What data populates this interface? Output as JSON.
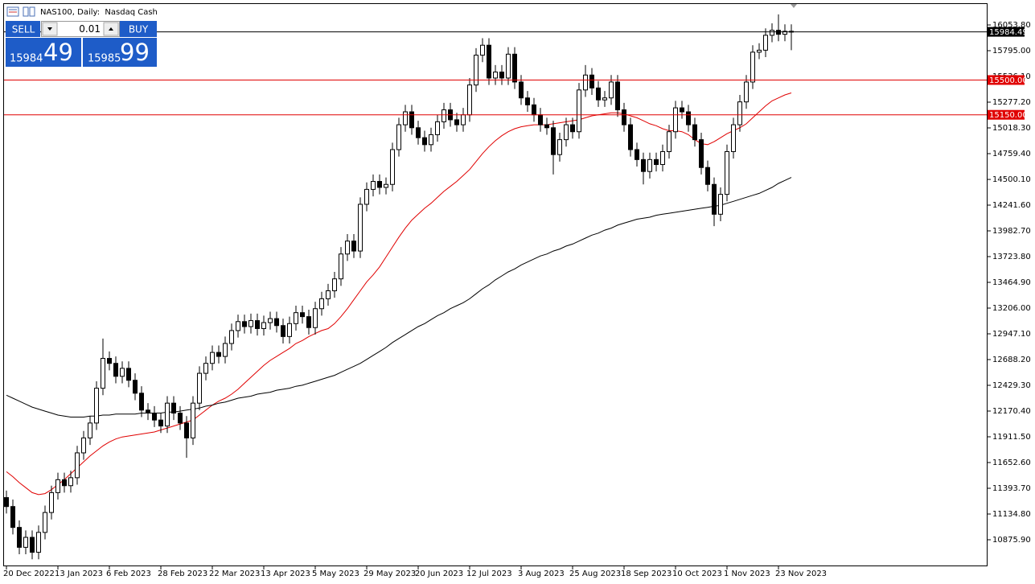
{
  "chart_data": {
    "type": "candlestick",
    "title": "NAS100, Daily:  Nasdaq Cash",
    "categories": [
      "20 Dec 2022",
      null,
      null,
      null,
      null,
      null,
      null,
      null,
      "13 Jan 2023",
      null,
      null,
      null,
      null,
      null,
      null,
      null,
      "6 Feb 2023",
      null,
      null,
      null,
      null,
      null,
      null,
      null,
      "28 Feb 2023",
      null,
      null,
      null,
      null,
      null,
      null,
      null,
      "22 Mar 2023",
      null,
      null,
      null,
      null,
      null,
      null,
      null,
      "13 Apr 2023",
      null,
      null,
      null,
      null,
      null,
      null,
      null,
      "5 May 2023",
      null,
      null,
      null,
      null,
      null,
      null,
      null,
      "29 May 2023",
      null,
      null,
      null,
      null,
      null,
      null,
      null,
      "20 Jun 2023",
      null,
      null,
      null,
      null,
      null,
      null,
      null,
      "12 Jul 2023",
      null,
      null,
      null,
      null,
      null,
      null,
      null,
      "3 Aug 2023",
      null,
      null,
      null,
      null,
      null,
      null,
      null,
      "25 Aug 2023",
      null,
      null,
      null,
      null,
      null,
      null,
      null,
      "18 Sep 2023",
      null,
      null,
      null,
      null,
      null,
      null,
      null,
      "10 Oct 2023",
      null,
      null,
      null,
      null,
      null,
      null,
      null,
      "1 Nov 2023",
      null,
      null,
      null,
      null,
      null,
      null,
      null,
      "23 Nov 2023",
      null,
      null
    ],
    "open": [
      11300,
      11210,
      11000,
      10800,
      10900,
      10750,
      10950,
      11150,
      11350,
      11480,
      11420,
      11500,
      11750,
      11900,
      12050,
      12400,
      12700,
      12650,
      12520,
      12600,
      12480,
      12350,
      12180,
      12150,
      12080,
      12020,
      12250,
      12150,
      12050,
      11900,
      12250,
      12550,
      12650,
      12760,
      12720,
      12850,
      12980,
      13070,
      13020,
      13080,
      13000,
      13060,
      13100,
      13030,
      12920,
      13050,
      13160,
      13120,
      13010,
      13200,
      13300,
      13380,
      13500,
      13750,
      13880,
      13780,
      14250,
      14400,
      14480,
      14420,
      14450,
      14800,
      15050,
      15180,
      15020,
      14920,
      14850,
      14950,
      15080,
      15200,
      15100,
      15050,
      15150,
      15450,
      15750,
      15850,
      15520,
      15580,
      15520,
      15760,
      15480,
      15320,
      15250,
      15150,
      15050,
      15020,
      14750,
      14900,
      15050,
      14980,
      15400,
      15550,
      15420,
      15300,
      15320,
      15480,
      15200,
      15050,
      14800,
      14700,
      14580,
      14700,
      14650,
      14780,
      14980,
      15220,
      15180,
      15050,
      14900,
      14620,
      14450,
      14150,
      14350,
      14780,
      15050,
      15280,
      15480,
      15780,
      15800,
      15950,
      16000,
      15960,
      15990
    ],
    "high": [
      11370,
      11280,
      11070,
      10970,
      10970,
      11020,
      11220,
      11420,
      11550,
      11550,
      11570,
      11820,
      11970,
      12120,
      12470,
      12900,
      12770,
      12720,
      12670,
      12670,
      12550,
      12420,
      12250,
      12220,
      12150,
      12320,
      12320,
      12220,
      12120,
      12320,
      12620,
      12720,
      12830,
      12830,
      12920,
      13050,
      13140,
      13140,
      13150,
      13150,
      13130,
      13170,
      13170,
      13100,
      13120,
      13230,
      13230,
      13190,
      13270,
      13370,
      13450,
      13570,
      13820,
      13950,
      13950,
      14320,
      14470,
      14550,
      14550,
      14520,
      14870,
      15120,
      15250,
      15250,
      15090,
      14990,
      15020,
      15150,
      15270,
      15270,
      15170,
      15220,
      15520,
      15820,
      15920,
      15920,
      15650,
      15650,
      15830,
      15830,
      15550,
      15390,
      15320,
      15220,
      15120,
      15090,
      14970,
      15120,
      15120,
      15470,
      15650,
      15620,
      15490,
      15390,
      15550,
      15550,
      15270,
      15120,
      14870,
      14770,
      14770,
      14770,
      14850,
      15050,
      15290,
      15290,
      15250,
      15120,
      14970,
      14690,
      14520,
      14420,
      14850,
      15120,
      15350,
      15550,
      15850,
      15870,
      16020,
      16070,
      16160,
      16060,
      16060
    ],
    "low": [
      11140,
      10930,
      10730,
      10730,
      10680,
      10680,
      10880,
      11080,
      11280,
      11350,
      11350,
      11430,
      11680,
      11830,
      11980,
      12330,
      12580,
      12450,
      12450,
      12410,
      12280,
      12110,
      12080,
      12010,
      11950,
      11950,
      12080,
      11980,
      11700,
      11830,
      12180,
      12480,
      12580,
      12650,
      12650,
      12780,
      12910,
      12950,
      12950,
      12930,
      12930,
      12990,
      12960,
      12850,
      12850,
      12980,
      13050,
      12940,
      12940,
      13130,
      13230,
      13310,
      13430,
      13680,
      13710,
      13710,
      14180,
      14330,
      14350,
      14350,
      14380,
      14730,
      14980,
      14950,
      14850,
      14780,
      14780,
      14880,
      15010,
      15030,
      14980,
      14980,
      15080,
      15380,
      15680,
      15450,
      15450,
      15450,
      15450,
      15410,
      15250,
      15180,
      15080,
      14980,
      14950,
      14550,
      14680,
      14830,
      14910,
      14910,
      15330,
      15350,
      15230,
      15230,
      15250,
      15130,
      14980,
      14730,
      14630,
      14450,
      14510,
      14580,
      14580,
      14710,
      14910,
      15110,
      14980,
      14830,
      14550,
      14380,
      14030,
      14080,
      14280,
      14710,
      14980,
      15210,
      15410,
      15710,
      15730,
      15880,
      15890,
      15890,
      15800
    ],
    "close": [
      11210,
      11000,
      10800,
      10900,
      10750,
      10950,
      11150,
      11350,
      11480,
      11420,
      11500,
      11750,
      11900,
      12050,
      12400,
      12700,
      12650,
      12520,
      12600,
      12480,
      12350,
      12180,
      12150,
      12080,
      12020,
      12250,
      12150,
      12050,
      11900,
      12250,
      12550,
      12650,
      12760,
      12720,
      12850,
      12980,
      13070,
      13020,
      13080,
      13000,
      13060,
      13100,
      13030,
      12920,
      13050,
      13160,
      13120,
      13010,
      13200,
      13300,
      13380,
      13500,
      13750,
      13880,
      13780,
      14250,
      14400,
      14480,
      14420,
      14450,
      14800,
      15050,
      15180,
      15020,
      14920,
      14850,
      14950,
      15080,
      15200,
      15100,
      15050,
      15150,
      15450,
      15750,
      15850,
      15520,
      15580,
      15520,
      15760,
      15480,
      15320,
      15250,
      15150,
      15050,
      15020,
      14750,
      14900,
      15050,
      14980,
      15400,
      15550,
      15420,
      15300,
      15320,
      15480,
      15200,
      15050,
      14800,
      14700,
      14580,
      14700,
      14650,
      14780,
      14980,
      15220,
      15180,
      15050,
      14900,
      14620,
      14450,
      14150,
      14350,
      14780,
      15050,
      15280,
      15480,
      15780,
      15800,
      15950,
      16000,
      15960,
      15990,
      15984.49
    ],
    "up_color": "#ffffff",
    "down_color": "#000000",
    "wick_color": "#000000",
    "moving_averages": [
      {
        "color": "#e00000",
        "values": [
          11560,
          11510,
          11450,
          11400,
          11350,
          11330,
          11340,
          11380,
          11430,
          11480,
          11540,
          11600,
          11660,
          11720,
          11770,
          11820,
          11860,
          11890,
          11910,
          11920,
          11930,
          11940,
          11950,
          11960,
          11980,
          12000,
          12020,
          12040,
          12060,
          12080,
          12130,
          12180,
          12230,
          12270,
          12300,
          12340,
          12390,
          12450,
          12510,
          12570,
          12630,
          12680,
          12720,
          12760,
          12800,
          12850,
          12880,
          12920,
          12950,
          12980,
          13000,
          13050,
          13120,
          13200,
          13290,
          13380,
          13470,
          13540,
          13620,
          13720,
          13820,
          13920,
          14010,
          14090,
          14150,
          14210,
          14260,
          14320,
          14380,
          14430,
          14480,
          14540,
          14600,
          14680,
          14760,
          14830,
          14890,
          14940,
          14980,
          15010,
          15030,
          15040,
          15050,
          15050,
          15050,
          15060,
          15070,
          15080,
          15090,
          15100,
          15120,
          15140,
          15150,
          15160,
          15170,
          15170,
          15160,
          15140,
          15120,
          15090,
          15060,
          15040,
          15010,
          14990,
          14990,
          14980,
          14950,
          14900,
          14860,
          14850,
          14880,
          14920,
          14960,
          14990,
          15020,
          15060,
          15120,
          15180,
          15240,
          15290,
          15320,
          15350,
          15370
        ]
      },
      {
        "color": "#000000",
        "values": [
          12330,
          12300,
          12270,
          12240,
          12210,
          12190,
          12170,
          12150,
          12130,
          12120,
          12110,
          12110,
          12110,
          12120,
          12120,
          12130,
          12130,
          12140,
          12140,
          12140,
          12140,
          12150,
          12150,
          12150,
          12150,
          12160,
          12160,
          12170,
          12180,
          12190,
          12200,
          12220,
          12230,
          12250,
          12260,
          12280,
          12300,
          12310,
          12320,
          12340,
          12350,
          12360,
          12380,
          12390,
          12400,
          12420,
          12430,
          12450,
          12470,
          12490,
          12510,
          12530,
          12560,
          12590,
          12620,
          12650,
          12690,
          12730,
          12770,
          12810,
          12860,
          12900,
          12940,
          12980,
          13020,
          13050,
          13090,
          13130,
          13160,
          13200,
          13230,
          13260,
          13300,
          13350,
          13400,
          13440,
          13490,
          13530,
          13570,
          13600,
          13640,
          13670,
          13700,
          13730,
          13750,
          13780,
          13800,
          13830,
          13850,
          13880,
          13910,
          13940,
          13960,
          13990,
          14010,
          14040,
          14060,
          14080,
          14100,
          14110,
          14120,
          14140,
          14150,
          14160,
          14170,
          14180,
          14190,
          14200,
          14210,
          14220,
          14230,
          14240,
          14260,
          14280,
          14300,
          14320,
          14340,
          14360,
          14390,
          14420,
          14460,
          14490,
          14520
        ]
      }
    ],
    "price_lines": [
      {
        "value": 15984.49,
        "label": "15984.49",
        "color": "#000000"
      },
      {
        "value": 15500,
        "label": "15500.00",
        "color": "#e00000"
      },
      {
        "value": 15150,
        "label": "15150.00",
        "color": "#e00000"
      }
    ],
    "ylim": [
      10617.0,
      16264.3
    ],
    "yticks": [
      {
        "value": 16053.8,
        "label": "16053.80"
      },
      {
        "value": 15795.0,
        "label": "15795.00"
      },
      {
        "value": 15536.1,
        "label": "15536.10"
      },
      {
        "value": 15277.2,
        "label": "15277.20"
      },
      {
        "value": 15018.3,
        "label": "15018.30"
      },
      {
        "value": 14759.4,
        "label": "14759.40"
      },
      {
        "value": 14500.1,
        "label": "14500.10"
      },
      {
        "value": 14241.6,
        "label": "14241.60"
      },
      {
        "value": 13982.7,
        "label": "13982.70"
      },
      {
        "value": 13723.8,
        "label": "13723.80"
      },
      {
        "value": 13464.9,
        "label": "13464.90"
      },
      {
        "value": 13206.0,
        "label": "13206.00"
      },
      {
        "value": 12947.1,
        "label": "12947.10"
      },
      {
        "value": 12688.2,
        "label": "12688.20"
      },
      {
        "value": 12429.3,
        "label": "12429.30"
      },
      {
        "value": 12170.4,
        "label": "12170.40"
      },
      {
        "value": 11911.5,
        "label": "11911.50"
      },
      {
        "value": 11652.6,
        "label": "11652.60"
      },
      {
        "value": 11393.7,
        "label": "11393.70"
      },
      {
        "value": 11134.8,
        "label": "11134.80"
      },
      {
        "value": 10875.9,
        "label": "10875.90"
      }
    ]
  },
  "trade_panel": {
    "sell": "SELL",
    "buy": "BUY",
    "volume": "0.01",
    "bid_big": "15984",
    "bid_small": "49",
    "ask_big": "15985",
    "ask_small": "99"
  }
}
